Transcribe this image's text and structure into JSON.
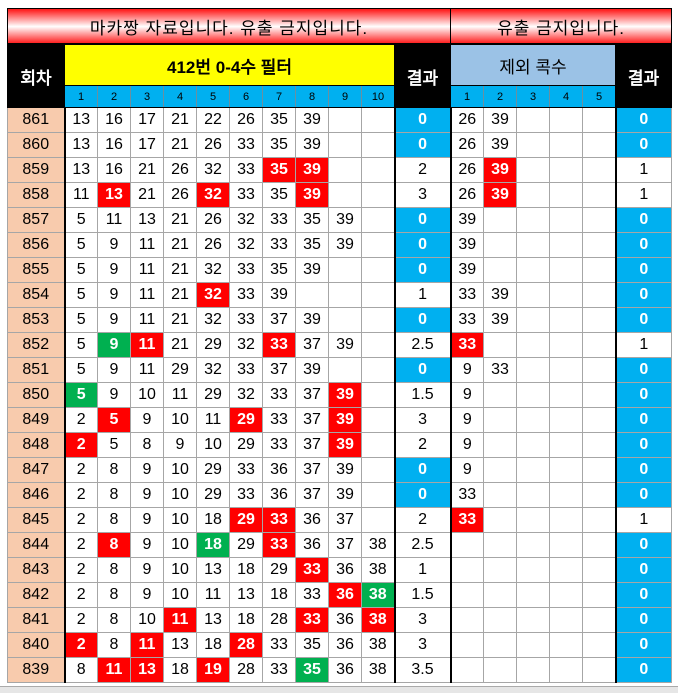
{
  "header": {
    "title_left": "마카짱 자료입니다. 유출 금지입니다.",
    "title_right": "유출 금지입니다.",
    "round_label": "회차",
    "filter_label": "412번 0-4수 필터",
    "result_label": "결과",
    "exclude_label": "제외 콕수",
    "result2_label": "결과",
    "filter_cols": [
      "1",
      "2",
      "3",
      "4",
      "5",
      "6",
      "7",
      "8",
      "9",
      "10"
    ],
    "exclude_cols": [
      "1",
      "2",
      "3",
      "4",
      "5"
    ]
  },
  "colors": {
    "red": "#ff0000",
    "green": "#00b050",
    "blue": "#00b0f0",
    "yellow": "#ffff00",
    "round_bg": "#f8cbad"
  },
  "rows": [
    {
      "round": "861",
      "nums": [
        "13",
        "16",
        "17",
        "21",
        "22",
        "26",
        "35",
        "39"
      ],
      "marks": [],
      "result": "0",
      "excl": [
        "26",
        "39"
      ],
      "excl_marks": [],
      "result2": "0"
    },
    {
      "round": "860",
      "nums": [
        "13",
        "16",
        "17",
        "21",
        "26",
        "33",
        "35",
        "39"
      ],
      "marks": [],
      "result": "0",
      "excl": [
        "26",
        "39"
      ],
      "excl_marks": [],
      "result2": "0"
    },
    {
      "round": "859",
      "nums": [
        "13",
        "16",
        "21",
        "26",
        "32",
        "33",
        "35",
        "39"
      ],
      "marks": [
        "",
        "",
        "",
        "",
        "",
        "",
        "r",
        "r"
      ],
      "result": "2",
      "excl": [
        "26",
        "39"
      ],
      "excl_marks": [
        "",
        "r"
      ],
      "result2": "1"
    },
    {
      "round": "858",
      "nums": [
        "11",
        "13",
        "21",
        "26",
        "32",
        "33",
        "35",
        "39"
      ],
      "marks": [
        "",
        "r",
        "",
        "",
        "r",
        "",
        "",
        "r"
      ],
      "result": "3",
      "excl": [
        "26",
        "39"
      ],
      "excl_marks": [
        "",
        "r"
      ],
      "result2": "1"
    },
    {
      "round": "857",
      "nums": [
        "5",
        "11",
        "13",
        "21",
        "26",
        "32",
        "33",
        "35",
        "39"
      ],
      "marks": [],
      "result": "0",
      "excl": [
        "39"
      ],
      "excl_marks": [],
      "result2": "0"
    },
    {
      "round": "856",
      "nums": [
        "5",
        "9",
        "11",
        "21",
        "26",
        "32",
        "33",
        "35",
        "39"
      ],
      "marks": [],
      "result": "0",
      "excl": [
        "39"
      ],
      "excl_marks": [],
      "result2": "0"
    },
    {
      "round": "855",
      "nums": [
        "5",
        "9",
        "11",
        "21",
        "32",
        "33",
        "35",
        "39"
      ],
      "marks": [],
      "result": "0",
      "excl": [
        "39"
      ],
      "excl_marks": [],
      "result2": "0"
    },
    {
      "round": "854",
      "nums": [
        "5",
        "9",
        "11",
        "21",
        "32",
        "33",
        "39"
      ],
      "marks": [
        "",
        "",
        "",
        "",
        "r"
      ],
      "result": "1",
      "excl": [
        "33",
        "39"
      ],
      "excl_marks": [],
      "result2": "0"
    },
    {
      "round": "853",
      "nums": [
        "5",
        "9",
        "11",
        "21",
        "32",
        "33",
        "37",
        "39"
      ],
      "marks": [],
      "result": "0",
      "excl": [
        "33",
        "39"
      ],
      "excl_marks": [],
      "result2": "0"
    },
    {
      "round": "852",
      "nums": [
        "5",
        "9",
        "11",
        "21",
        "29",
        "32",
        "33",
        "37",
        "39"
      ],
      "marks": [
        "",
        "g",
        "r",
        "",
        "",
        "",
        "r"
      ],
      "result": "2.5",
      "excl": [
        "33"
      ],
      "excl_marks": [
        "r"
      ],
      "result2": "1"
    },
    {
      "round": "851",
      "nums": [
        "5",
        "9",
        "11",
        "29",
        "32",
        "33",
        "37",
        "39"
      ],
      "marks": [],
      "result": "0",
      "excl": [
        "9",
        "33"
      ],
      "excl_marks": [],
      "result2": "0"
    },
    {
      "round": "850",
      "nums": [
        "5",
        "9",
        "10",
        "11",
        "29",
        "32",
        "33",
        "37",
        "39"
      ],
      "marks": [
        "g",
        "",
        "",
        "",
        "",
        "",
        "",
        "",
        "r"
      ],
      "result": "1.5",
      "excl": [
        "9"
      ],
      "excl_marks": [],
      "result2": "0"
    },
    {
      "round": "849",
      "nums": [
        "2",
        "5",
        "9",
        "10",
        "11",
        "29",
        "33",
        "37",
        "39"
      ],
      "marks": [
        "",
        "r",
        "",
        "",
        "",
        "r",
        "",
        "",
        "r"
      ],
      "result": "3",
      "excl": [
        "9"
      ],
      "excl_marks": [],
      "result2": "0"
    },
    {
      "round": "848",
      "nums": [
        "2",
        "5",
        "8",
        "9",
        "10",
        "29",
        "33",
        "37",
        "39"
      ],
      "marks": [
        "r",
        "",
        "",
        "",
        "",
        "",
        "",
        "",
        "r"
      ],
      "result": "2",
      "excl": [
        "9"
      ],
      "excl_marks": [],
      "result2": "0"
    },
    {
      "round": "847",
      "nums": [
        "2",
        "8",
        "9",
        "10",
        "29",
        "33",
        "36",
        "37",
        "39"
      ],
      "marks": [],
      "result": "0",
      "excl": [
        "9"
      ],
      "excl_marks": [],
      "result2": "0"
    },
    {
      "round": "846",
      "nums": [
        "2",
        "8",
        "9",
        "10",
        "29",
        "33",
        "36",
        "37",
        "39"
      ],
      "marks": [],
      "result": "0",
      "excl": [
        "33"
      ],
      "excl_marks": [],
      "result2": "0"
    },
    {
      "round": "845",
      "nums": [
        "2",
        "8",
        "9",
        "10",
        "18",
        "29",
        "33",
        "36",
        "37"
      ],
      "marks": [
        "",
        "",
        "",
        "",
        "",
        "r",
        "r"
      ],
      "result": "2",
      "excl": [
        "33"
      ],
      "excl_marks": [
        "r"
      ],
      "result2": "1"
    },
    {
      "round": "844",
      "nums": [
        "2",
        "8",
        "9",
        "10",
        "18",
        "29",
        "33",
        "36",
        "37",
        "38"
      ],
      "marks": [
        "",
        "r",
        "",
        "",
        "g",
        "",
        "r"
      ],
      "result": "2.5",
      "excl": [],
      "excl_marks": [],
      "result2": "0"
    },
    {
      "round": "843",
      "nums": [
        "2",
        "8",
        "9",
        "10",
        "13",
        "18",
        "29",
        "33",
        "36",
        "38"
      ],
      "marks": [
        "",
        "",
        "",
        "",
        "",
        "",
        "",
        "r"
      ],
      "result": "1",
      "excl": [],
      "excl_marks": [],
      "result2": "0"
    },
    {
      "round": "842",
      "nums": [
        "2",
        "8",
        "9",
        "10",
        "11",
        "13",
        "18",
        "33",
        "36",
        "38"
      ],
      "marks": [
        "",
        "",
        "",
        "",
        "",
        "",
        "",
        "",
        "r",
        "g"
      ],
      "result": "1.5",
      "excl": [],
      "excl_marks": [],
      "result2": "0"
    },
    {
      "round": "841",
      "nums": [
        "2",
        "8",
        "10",
        "11",
        "13",
        "18",
        "28",
        "33",
        "36",
        "38"
      ],
      "marks": [
        "",
        "",
        "",
        "r",
        "",
        "",
        "",
        "r",
        "",
        "r"
      ],
      "result": "3",
      "excl": [],
      "excl_marks": [],
      "result2": "0"
    },
    {
      "round": "840",
      "nums": [
        "2",
        "8",
        "11",
        "13",
        "18",
        "28",
        "33",
        "35",
        "36",
        "38"
      ],
      "marks": [
        "r",
        "",
        "r",
        "",
        "",
        "r"
      ],
      "result": "3",
      "excl": [],
      "excl_marks": [],
      "result2": "0"
    },
    {
      "round": "839",
      "nums": [
        "8",
        "11",
        "13",
        "18",
        "19",
        "28",
        "33",
        "35",
        "36",
        "38"
      ],
      "marks": [
        "",
        "r",
        "r",
        "",
        "r",
        "",
        "",
        "g"
      ],
      "result": "3.5",
      "excl": [],
      "excl_marks": [],
      "result2": "0"
    }
  ]
}
